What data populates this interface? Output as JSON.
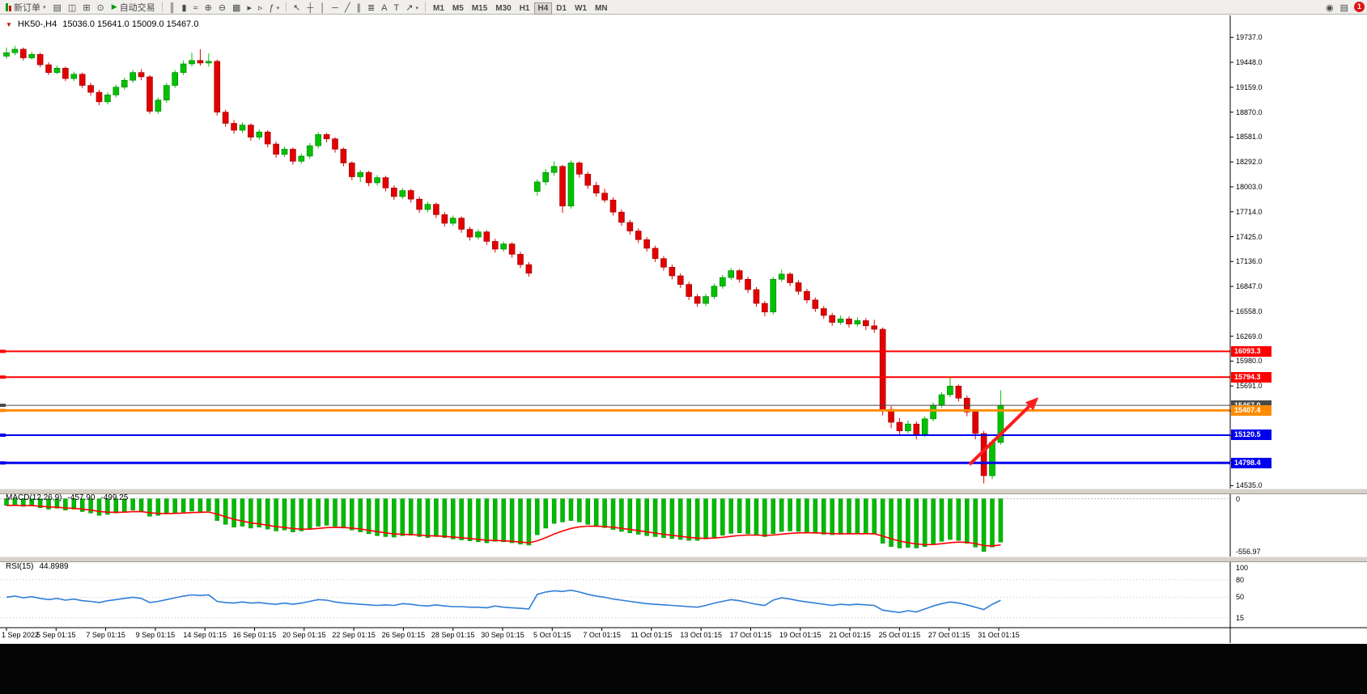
{
  "toolbar": {
    "new_order_label": "新订单",
    "auto_trading_label": "自动交易",
    "badge": "1",
    "left_icons": [
      {
        "name": "charts-profile-icon",
        "glyph": "▤"
      },
      {
        "name": "market-watch-icon",
        "glyph": "◫"
      },
      {
        "name": "navigator-icon",
        "glyph": "⊞"
      },
      {
        "name": "terminal-icon",
        "glyph": "⊙"
      }
    ],
    "chart_icons": [
      {
        "name": "bar-chart-icon",
        "glyph": "║"
      },
      {
        "name": "candlestick-chart-icon",
        "glyph": "▮"
      },
      {
        "name": "line-chart-icon",
        "glyph": "≈"
      },
      {
        "name": "zoom-in-icon",
        "glyph": "⊕"
      },
      {
        "name": "zoom-out-icon",
        "glyph": "⊖"
      },
      {
        "name": "tile-windows-icon",
        "glyph": "▦"
      },
      {
        "name": "auto-scroll-icon",
        "glyph": "▸"
      },
      {
        "name": "chart-shift-icon",
        "glyph": "▹"
      },
      {
        "name": "indicators-icon",
        "glyph": "ƒ",
        "caret": true
      }
    ],
    "draw_icons": [
      {
        "name": "cursor-icon",
        "glyph": "↖"
      },
      {
        "name": "crosshair-icon",
        "glyph": "┼"
      },
      {
        "name": "vertical-line-ic",
        "glyph": "│"
      },
      {
        "name": "horizontal-line-ic",
        "glyph": "─"
      },
      {
        "name": "trendline-icon",
        "glyph": "╱"
      },
      {
        "name": "channel-icon",
        "glyph": "∥"
      },
      {
        "name": "fibonacci-icon",
        "glyph": "≣"
      },
      {
        "name": "text-icon",
        "glyph": "A"
      },
      {
        "name": "label-icon",
        "glyph": "T"
      },
      {
        "name": "arrows-tool-icon",
        "glyph": "↗",
        "caret": true
      }
    ],
    "right_icons": [
      {
        "name": "search-icon",
        "glyph": "◉"
      },
      {
        "name": "layout-icon",
        "glyph": "▤"
      }
    ],
    "timeframes": [
      "M1",
      "M5",
      "M15",
      "M30",
      "H1",
      "H4",
      "D1",
      "W1",
      "MN"
    ],
    "active_timeframe": "H4"
  },
  "chart": {
    "symbol_period": "HK50-,H4",
    "ohlc": "15036.0 15641.0 15009.0 15467.0"
  },
  "price_axis": {
    "ticks": [
      "19737.0",
      "19448.0",
      "19159.0",
      "18870.0",
      "18581.0",
      "18292.0",
      "18003.0",
      "17714.0",
      "17425.0",
      "17136.0",
      "16847.0",
      "16558.0",
      "16269.0",
      "15980.0",
      "15691.0",
      "15402.0",
      "15113.0",
      "14824.0",
      "14535.0"
    ]
  },
  "indicators": {
    "macd": {
      "name": "MACD(12,26,9)",
      "value_main": "-457.90",
      "value_signal": "-499.25",
      "axis_labels": [
        "0",
        "-556.97"
      ]
    },
    "rsi": {
      "name": "RSI(15)",
      "value": "44.8989",
      "axis_labels": [
        "100",
        "80",
        "50",
        "15"
      ]
    }
  },
  "time_axis": {
    "labels": [
      "1 Sep 2022",
      "5 Sep 01:15",
      "7 Sep 01:15",
      "9 Sep 01:15",
      "14 Sep 01:15",
      "16 Sep 01:15",
      "20 Sep 01:15",
      "22 Sep 01:15",
      "26 Sep 01:15",
      "28 Sep 01:15",
      "30 Sep 01:15",
      "5 Oct 01:15",
      "7 Oct 01:15",
      "11 Oct 01:15",
      "13 Oct 01:15",
      "17 Oct 01:15",
      "19 Oct 01:15",
      "21 Oct 01:15",
      "25 Oct 01:15",
      "27 Oct 01:15",
      "31 Oct 01:15"
    ]
  },
  "chart_data": {
    "type": "candlestick",
    "symbol": "HK50-",
    "timeframe": "H4",
    "price_range": [
      19890,
      14482
    ],
    "macd_range": [
      40,
      -610
    ],
    "rsi_range": [
      110,
      -2
    ],
    "colors": {
      "bull": "#00c200",
      "bear": "#e40000",
      "bull_border": "#007800",
      "bear_border": "#8f0000",
      "macd_hist": "#00bb00",
      "macd_signal": "#ff0000",
      "rsi_line": "#2f7ed8"
    },
    "candles": [
      [
        19520,
        19620,
        19490,
        19560
      ],
      [
        19560,
        19640,
        19530,
        19600
      ],
      [
        19600,
        19620,
        19470,
        19500
      ],
      [
        19500,
        19570,
        19480,
        19540
      ],
      [
        19540,
        19560,
        19390,
        19420
      ],
      [
        19420,
        19450,
        19300,
        19330
      ],
      [
        19330,
        19410,
        19310,
        19380
      ],
      [
        19380,
        19400,
        19230,
        19260
      ],
      [
        19260,
        19340,
        19230,
        19310
      ],
      [
        19310,
        19330,
        19150,
        19180
      ],
      [
        19180,
        19210,
        19060,
        19100
      ],
      [
        19100,
        19130,
        18950,
        18990
      ],
      [
        18990,
        19100,
        18960,
        19070
      ],
      [
        19070,
        19190,
        19040,
        19160
      ],
      [
        19160,
        19270,
        19130,
        19240
      ],
      [
        19240,
        19360,
        19210,
        19330
      ],
      [
        19330,
        19370,
        19240,
        19280
      ],
      [
        19280,
        19300,
        18850,
        18880
      ],
      [
        18880,
        19040,
        18850,
        19010
      ],
      [
        19010,
        19210,
        18980,
        19180
      ],
      [
        19180,
        19360,
        19150,
        19330
      ],
      [
        19330,
        19470,
        19300,
        19430
      ],
      [
        19430,
        19560,
        19400,
        19470
      ],
      [
        19470,
        19600,
        19410,
        19440
      ],
      [
        19440,
        19550,
        19400,
        19460
      ],
      [
        19460,
        19480,
        18830,
        18870
      ],
      [
        18870,
        18900,
        18700,
        18740
      ],
      [
        18740,
        18780,
        18620,
        18660
      ],
      [
        18660,
        18750,
        18630,
        18720
      ],
      [
        18720,
        18740,
        18540,
        18580
      ],
      [
        18580,
        18670,
        18550,
        18640
      ],
      [
        18640,
        18660,
        18460,
        18500
      ],
      [
        18500,
        18530,
        18340,
        18380
      ],
      [
        18380,
        18470,
        18350,
        18440
      ],
      [
        18440,
        18460,
        18260,
        18300
      ],
      [
        18300,
        18390,
        18270,
        18360
      ],
      [
        18360,
        18510,
        18330,
        18480
      ],
      [
        18480,
        18640,
        18450,
        18610
      ],
      [
        18610,
        18630,
        18520,
        18560
      ],
      [
        18560,
        18580,
        18400,
        18440
      ],
      [
        18440,
        18460,
        18240,
        18280
      ],
      [
        18280,
        18300,
        18080,
        18120
      ],
      [
        18120,
        18200,
        18060,
        18170
      ],
      [
        18170,
        18190,
        18010,
        18050
      ],
      [
        18050,
        18140,
        18020,
        18110
      ],
      [
        18110,
        18130,
        17950,
        17990
      ],
      [
        17990,
        18020,
        17850,
        17890
      ],
      [
        17890,
        17990,
        17860,
        17960
      ],
      [
        17960,
        17980,
        17820,
        17860
      ],
      [
        17860,
        17890,
        17700,
        17740
      ],
      [
        17740,
        17830,
        17710,
        17800
      ],
      [
        17800,
        17820,
        17640,
        17680
      ],
      [
        17680,
        17710,
        17540,
        17580
      ],
      [
        17580,
        17670,
        17550,
        17640
      ],
      [
        17640,
        17660,
        17470,
        17510
      ],
      [
        17510,
        17540,
        17380,
        17420
      ],
      [
        17420,
        17510,
        17390,
        17480
      ],
      [
        17480,
        17500,
        17330,
        17370
      ],
      [
        17370,
        17400,
        17240,
        17280
      ],
      [
        17280,
        17370,
        17250,
        17340
      ],
      [
        17340,
        17360,
        17180,
        17220
      ],
      [
        17220,
        17250,
        17060,
        17100
      ],
      [
        17100,
        17130,
        16960,
        17000
      ],
      [
        17950,
        18090,
        17900,
        18060
      ],
      [
        18060,
        18210,
        18020,
        18170
      ],
      [
        18170,
        18300,
        18130,
        18240
      ],
      [
        18240,
        18260,
        17700,
        17780
      ],
      [
        17780,
        18310,
        17750,
        18280
      ],
      [
        18280,
        18300,
        18110,
        18150
      ],
      [
        18150,
        18180,
        17980,
        18020
      ],
      [
        18020,
        18060,
        17890,
        17930
      ],
      [
        17930,
        17980,
        17820,
        17850
      ],
      [
        17850,
        17880,
        17670,
        17710
      ],
      [
        17710,
        17740,
        17550,
        17590
      ],
      [
        17590,
        17620,
        17450,
        17490
      ],
      [
        17490,
        17520,
        17350,
        17390
      ],
      [
        17390,
        17420,
        17250,
        17290
      ],
      [
        17290,
        17320,
        17130,
        17170
      ],
      [
        17170,
        17200,
        17030,
        17070
      ],
      [
        17070,
        17100,
        16930,
        16970
      ],
      [
        16970,
        17000,
        16830,
        16870
      ],
      [
        16870,
        16900,
        16690,
        16730
      ],
      [
        16730,
        16760,
        16610,
        16650
      ],
      [
        16650,
        16760,
        16620,
        16730
      ],
      [
        16730,
        16880,
        16700,
        16850
      ],
      [
        16850,
        16980,
        16820,
        16950
      ],
      [
        16950,
        17060,
        16920,
        17030
      ],
      [
        17030,
        17050,
        16890,
        16930
      ],
      [
        16930,
        16960,
        16770,
        16810
      ],
      [
        16810,
        16840,
        16610,
        16650
      ],
      [
        16650,
        16680,
        16500,
        16550
      ],
      [
        16550,
        16960,
        16520,
        16930
      ],
      [
        16930,
        17040,
        16900,
        16990
      ],
      [
        16990,
        17010,
        16850,
        16890
      ],
      [
        16890,
        16920,
        16750,
        16790
      ],
      [
        16790,
        16820,
        16650,
        16690
      ],
      [
        16690,
        16720,
        16550,
        16590
      ],
      [
        16590,
        16620,
        16470,
        16510
      ],
      [
        16510,
        16540,
        16390,
        16430
      ],
      [
        16430,
        16510,
        16400,
        16470
      ],
      [
        16470,
        16500,
        16370,
        16410
      ],
      [
        16410,
        16490,
        16380,
        16450
      ],
      [
        16450,
        16480,
        16340,
        16390
      ],
      [
        16390,
        16460,
        16310,
        16350
      ],
      [
        16350,
        16370,
        15350,
        15420
      ],
      [
        15420,
        15460,
        15200,
        15270
      ],
      [
        15270,
        15320,
        15110,
        15170
      ],
      [
        15170,
        15290,
        15140,
        15250
      ],
      [
        15250,
        15280,
        15070,
        15130
      ],
      [
        15130,
        15340,
        15100,
        15310
      ],
      [
        15310,
        15500,
        15280,
        15470
      ],
      [
        15470,
        15620,
        15440,
        15590
      ],
      [
        15590,
        15790,
        15560,
        15690
      ],
      [
        15690,
        15710,
        15510,
        15550
      ],
      [
        15550,
        15580,
        15340,
        15390
      ],
      [
        15390,
        15420,
        15070,
        15140
      ],
      [
        15140,
        15170,
        14560,
        14650
      ],
      [
        14650,
        15070,
        14610,
        15036
      ],
      [
        15036,
        15641,
        15009,
        15467
      ]
    ],
    "macd_histogram": [
      -70,
      -65,
      -80,
      -75,
      -95,
      -110,
      -100,
      -120,
      -110,
      -135,
      -150,
      -175,
      -165,
      -150,
      -135,
      -120,
      -130,
      -185,
      -175,
      -160,
      -150,
      -140,
      -130,
      -135,
      -130,
      -230,
      -270,
      -300,
      -290,
      -310,
      -300,
      -320,
      -340,
      -330,
      -350,
      -340,
      -320,
      -290,
      -280,
      -290,
      -310,
      -330,
      -350,
      -370,
      -390,
      -400,
      -405,
      -390,
      -385,
      -400,
      -410,
      -400,
      -410,
      -425,
      -435,
      -445,
      -455,
      -465,
      -450,
      -455,
      -465,
      -480,
      -490,
      -380,
      -310,
      -260,
      -245,
      -230,
      -245,
      -270,
      -290,
      -305,
      -325,
      -345,
      -360,
      -375,
      -390,
      -400,
      -410,
      -420,
      -430,
      -440,
      -440,
      -425,
      -405,
      -385,
      -365,
      -360,
      -370,
      -385,
      -400,
      -370,
      -345,
      -340,
      -345,
      -355,
      -365,
      -375,
      -380,
      -375,
      -370,
      -365,
      -368,
      -372,
      -470,
      -505,
      -520,
      -515,
      -520,
      -505,
      -480,
      -450,
      -430,
      -440,
      -470,
      -510,
      -557,
      -510,
      -458
    ],
    "rsi": [
      50,
      52,
      49,
      51,
      48,
      46,
      48,
      45,
      47,
      44,
      43,
      41,
      44,
      46,
      48,
      50,
      48,
      41,
      43,
      46,
      49,
      52,
      54,
      53,
      54,
      43,
      41,
      40,
      42,
      40,
      41,
      39,
      38,
      40,
      38,
      40,
      43,
      46,
      45,
      42,
      40,
      39,
      38,
      37,
      36,
      37,
      36,
      39,
      38,
      36,
      35,
      37,
      35,
      34,
      34,
      33,
      33,
      32,
      35,
      33,
      32,
      31,
      30,
      55,
      59,
      61,
      60,
      62,
      59,
      55,
      52,
      50,
      47,
      45,
      43,
      41,
      39,
      38,
      37,
      36,
      35,
      34,
      33,
      36,
      40,
      43,
      46,
      44,
      41,
      38,
      36,
      45,
      49,
      47,
      44,
      42,
      40,
      38,
      36,
      38,
      37,
      38,
      37,
      36,
      28,
      26,
      24,
      27,
      25,
      30,
      35,
      39,
      42,
      40,
      37,
      33,
      29,
      38,
      44.9
    ],
    "hlines": [
      {
        "price": 16093.3,
        "label": "16093.3",
        "color": "#ff0000",
        "width": 2
      },
      {
        "price": 15794.3,
        "label": "15794.3",
        "color": "#ff0000",
        "width": 2
      },
      {
        "price": 15467.0,
        "label": "15467.0",
        "color": "#4a4a4a",
        "width": 1
      },
      {
        "price": 15407.4,
        "label": "15407.4",
        "color": "#ff8c00",
        "width": 3
      },
      {
        "price": 15120.5,
        "label": "15120.5",
        "color": "#0000ee",
        "width": 2
      },
      {
        "price": 14798.4,
        "label": "14798.4",
        "color": "#0000ee",
        "width": 3
      }
    ],
    "arrow": {
      "from_index": 114.3,
      "from_price": 14780,
      "to_index": 122.5,
      "to_price": 15560,
      "color": "#ff1c1c",
      "width": 4
    }
  }
}
